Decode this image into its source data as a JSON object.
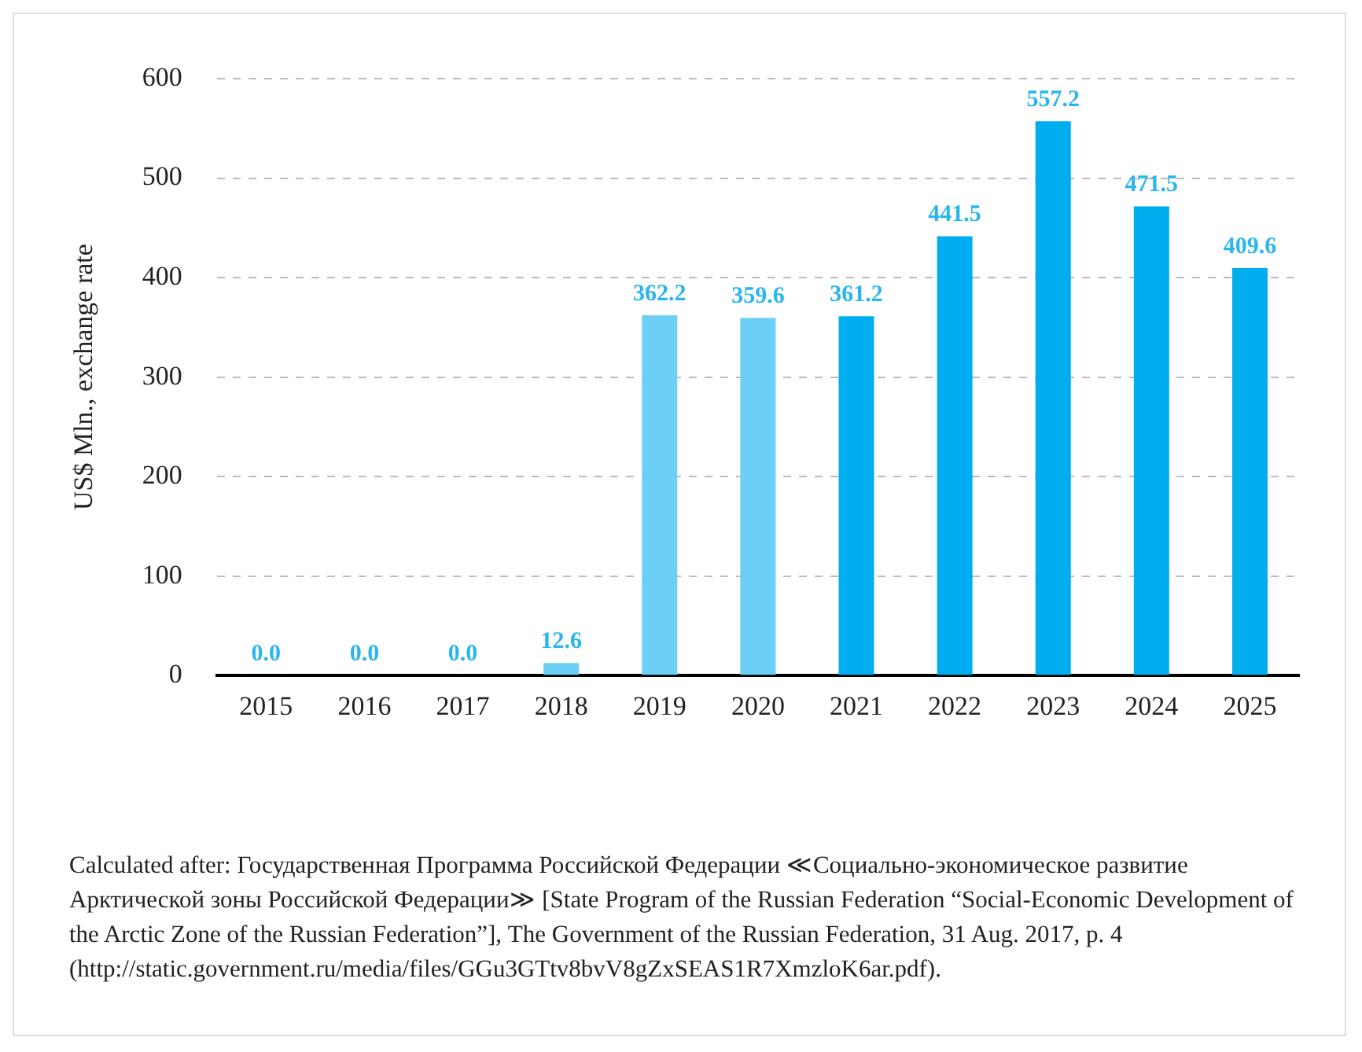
{
  "chart_data": {
    "type": "bar",
    "ylabel": "US$ Mln., exchange rate",
    "categories": [
      "2015",
      "2016",
      "2017",
      "2018",
      "2019",
      "2020",
      "2021",
      "2022",
      "2023",
      "2024",
      "2025"
    ],
    "values": [
      0.0,
      0.0,
      0.0,
      12.6,
      362.2,
      359.6,
      361.2,
      441.5,
      557.2,
      471.5,
      409.6
    ],
    "colors": [
      "#6dcff6",
      "#6dcff6",
      "#6dcff6",
      "#6dcff6",
      "#6dcff6",
      "#6dcff6",
      "#00aeef",
      "#00aeef",
      "#00aeef",
      "#00aeef",
      "#00aeef"
    ],
    "value_labels": [
      "0.0",
      "0.0",
      "0.0",
      "12.6",
      "362.2",
      "359.6",
      "361.2",
      "441.5",
      "557.2",
      "471.5",
      "409.6"
    ],
    "ylim": [
      0,
      600
    ],
    "yticks": [
      0,
      100,
      200,
      300,
      400,
      500,
      600
    ],
    "grid": "y",
    "legend": false,
    "annotations": [
      "Calculated after: Государственная Программа Российской Федерации ≪Социально-экономическое развитие Арктической зоны Российской Федерации≫ [State Program of the Russian Federation “Social-Economic Development of the Arctic Zone of the Russian Federation”], The Government of the Russian Federation, 31 Aug. 2017, p. 4 (http://static.government.ru/media/files/GGu3GTtv8bvV8gZxSEAS1R7XmzloK6ar.pdf)."
    ]
  }
}
